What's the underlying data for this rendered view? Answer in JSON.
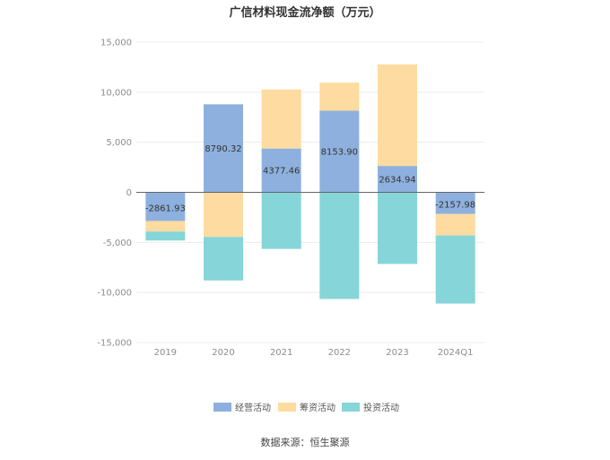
{
  "chart_data": {
    "type": "bar",
    "stacked": true,
    "title": "广信材料现金流净额（万元）",
    "source": "数据来源：恒生聚源",
    "categories": [
      "2019",
      "2020",
      "2021",
      "2022",
      "2023",
      "2024Q1"
    ],
    "ylim": [
      -15000,
      15000
    ],
    "yticks": [
      15000,
      10000,
      5000,
      0,
      -5000,
      -10000,
      -15000
    ],
    "ytick_labels": [
      "15,000",
      "10,000",
      "5,000",
      "0",
      "-5,000",
      "-10,000",
      "-15,000"
    ],
    "grid": true,
    "legend_position": "bottom",
    "series": [
      {
        "name": "经营活动",
        "color": "#8eb0de",
        "values": [
          -2861.93,
          8790.32,
          4377.46,
          8153.9,
          2634.94,
          -2157.98
        ],
        "labels": [
          "-2861.93",
          "8790.32",
          "4377.46",
          "8153.90",
          "2634.94",
          "-2157.98"
        ]
      },
      {
        "name": "筹资活动",
        "color": "#fedba0",
        "values": [
          -1050,
          -4450,
          5900,
          2800,
          10150,
          -2150
        ]
      },
      {
        "name": "投资活动",
        "color": "#86d5d8",
        "values": [
          -900,
          -4350,
          -5650,
          -10650,
          -7150,
          -6800
        ]
      }
    ]
  }
}
